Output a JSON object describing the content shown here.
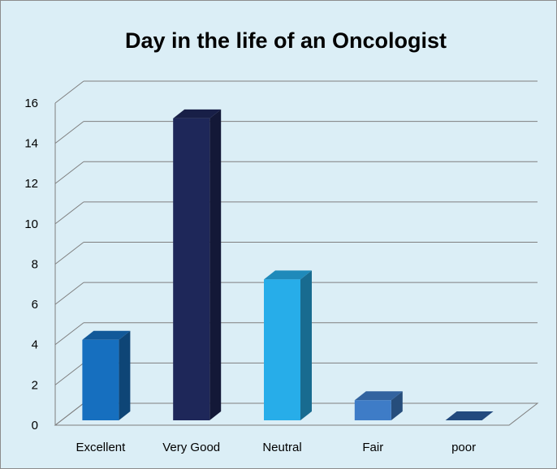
{
  "chart_data": {
    "type": "bar3d",
    "title": "Day in the life of an Oncologist",
    "categories": [
      "Excellent",
      "Very Good",
      "Neutral",
      "Fair",
      "poor"
    ],
    "values": [
      4,
      15,
      7,
      1,
      0
    ],
    "colors": [
      "#166fbf",
      "#1e2759",
      "#27ade9",
      "#3e7cc7",
      "#2b5c9e"
    ],
    "ylim": [
      0,
      16
    ],
    "yticks": [
      0,
      2,
      4,
      6,
      8,
      10,
      12,
      14,
      16
    ],
    "grid": true
  }
}
